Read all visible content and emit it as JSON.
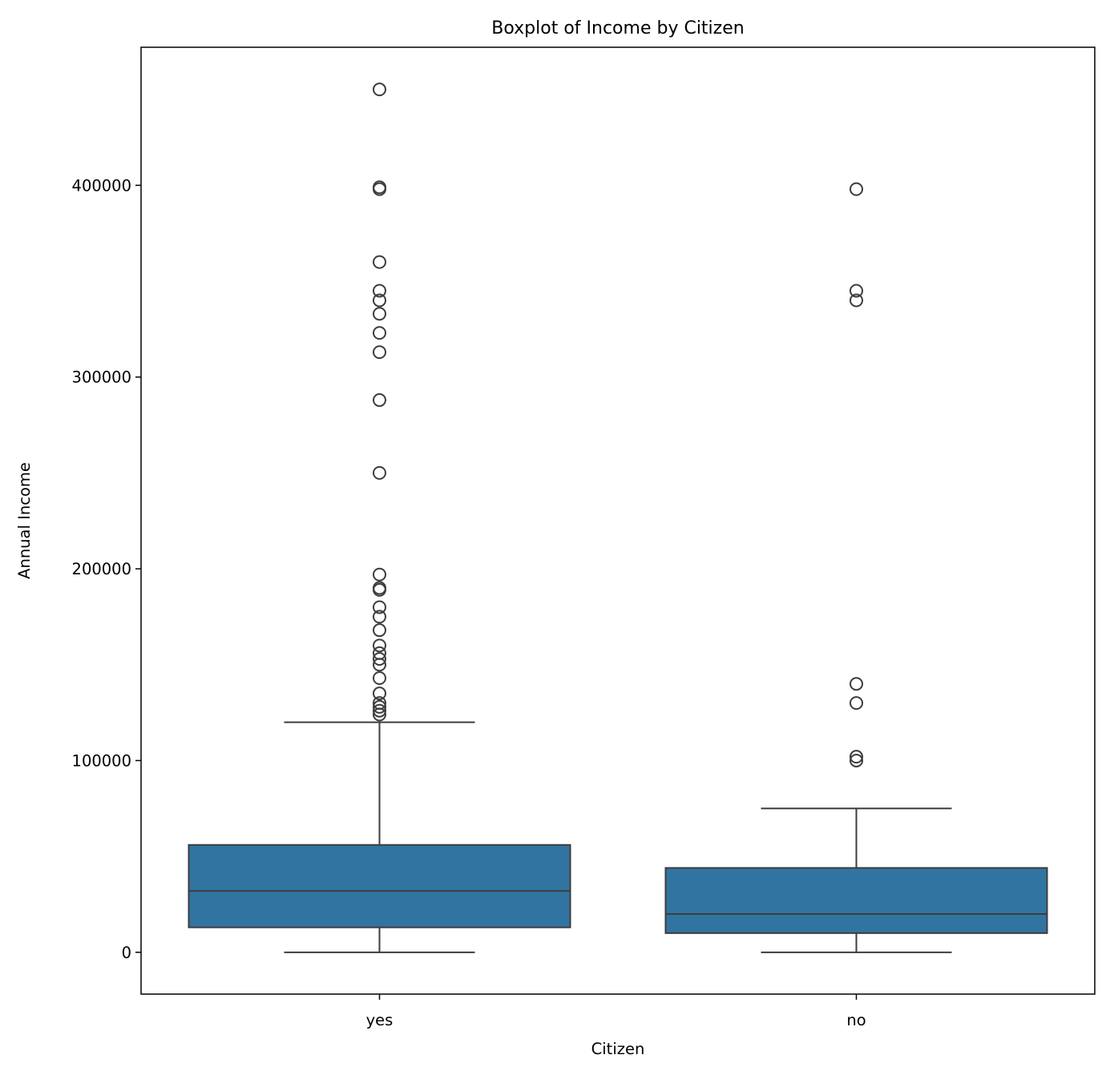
{
  "chart_data": {
    "type": "box",
    "title": "Boxplot of Income by Citizen",
    "xlabel": "Citizen",
    "ylabel": "Annual Income",
    "ylim": [
      -21800,
      472000
    ],
    "yticks": [
      0,
      100000,
      200000,
      300000,
      400000
    ],
    "ytick_labels": [
      "0",
      "100000",
      "200000",
      "300000",
      "400000"
    ],
    "grid": false,
    "box_color": "#3274a1",
    "line_color": "#3d3d3d",
    "categories": [
      "yes",
      "no"
    ],
    "boxes": [
      {
        "category": "yes",
        "whisker_low": 0,
        "q1": 13000,
        "median": 32000,
        "q3": 56000,
        "whisker_high": 120000,
        "outliers": [
          450000,
          399000,
          398000,
          360000,
          345000,
          340000,
          333000,
          323000,
          313000,
          288000,
          250000,
          197000,
          190000,
          189000,
          180000,
          175000,
          168000,
          160000,
          156000,
          153000,
          150000,
          143000,
          135000,
          130000,
          128000,
          126000,
          124000
        ]
      },
      {
        "category": "no",
        "whisker_low": 0,
        "q1": 10000,
        "median": 20000,
        "q3": 44000,
        "whisker_high": 75000,
        "outliers": [
          398000,
          345000,
          340000,
          140000,
          130000,
          102000,
          100000
        ]
      }
    ]
  }
}
